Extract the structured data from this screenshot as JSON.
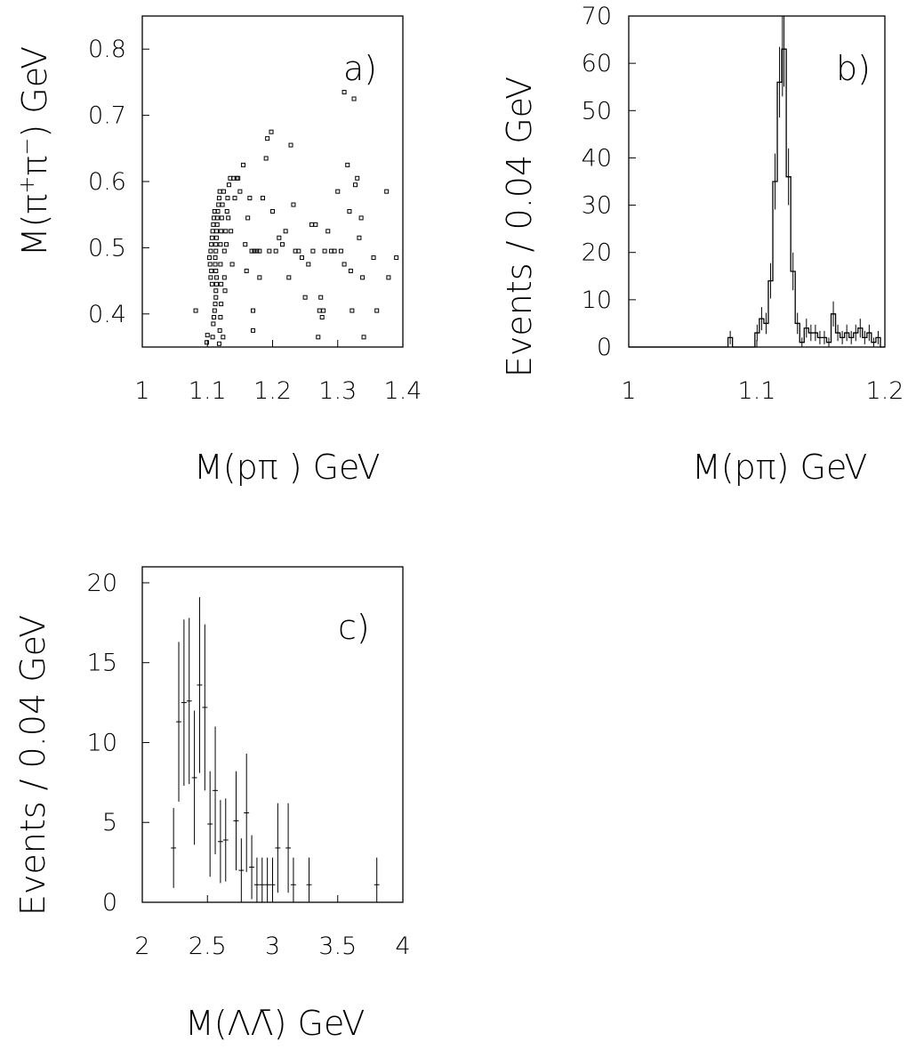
{
  "chart_data": [
    {
      "id": "a",
      "type": "scatter",
      "panel_label": "a)",
      "xlabel": "M(pπ ) GeV",
      "ylabel": "M(π+π−) GeV",
      "xlim": [
        1.0,
        1.4
      ],
      "ylim": [
        0.35,
        0.85
      ],
      "xticks": [
        1,
        1.1,
        1.2,
        1.3,
        1.4
      ],
      "xtick_labels": [
        "1",
        "1.1",
        "1.2",
        "1.3",
        "1.4"
      ],
      "yticks": [
        0.4,
        0.5,
        0.6,
        0.7,
        0.8
      ],
      "ytick_labels": [
        "0.4",
        "0.5",
        "0.6",
        "0.7",
        "0.8"
      ],
      "points": [
        [
          1.082,
          0.405
        ],
        [
          1.099,
          0.357
        ],
        [
          1.1,
          0.368
        ],
        [
          1.108,
          0.365
        ],
        [
          1.109,
          0.385
        ],
        [
          1.11,
          0.395
        ],
        [
          1.111,
          0.405
        ],
        [
          1.112,
          0.415
        ],
        [
          1.113,
          0.425
        ],
        [
          1.113,
          0.435
        ],
        [
          1.114,
          0.445
        ],
        [
          1.114,
          0.455
        ],
        [
          1.113,
          0.465
        ],
        [
          1.112,
          0.475
        ],
        [
          1.112,
          0.485
        ],
        [
          1.113,
          0.495
        ],
        [
          1.113,
          0.505
        ],
        [
          1.114,
          0.515
        ],
        [
          1.114,
          0.525
        ],
        [
          1.115,
          0.535
        ],
        [
          1.115,
          0.545
        ],
        [
          1.116,
          0.555
        ],
        [
          1.117,
          0.565
        ],
        [
          1.118,
          0.575
        ],
        [
          1.119,
          0.585
        ],
        [
          1.105,
          0.455
        ],
        [
          1.106,
          0.465
        ],
        [
          1.104,
          0.475
        ],
        [
          1.105,
          0.495
        ],
        [
          1.106,
          0.505
        ],
        [
          1.107,
          0.515
        ],
        [
          1.108,
          0.525
        ],
        [
          1.109,
          0.535
        ],
        [
          1.11,
          0.545
        ],
        [
          1.111,
          0.555
        ],
        [
          1.103,
          0.485
        ],
        [
          1.107,
          0.445
        ],
        [
          1.118,
          0.355
        ],
        [
          1.119,
          0.375
        ],
        [
          1.12,
          0.395
        ],
        [
          1.121,
          0.415
        ],
        [
          1.121,
          0.445
        ],
        [
          1.12,
          0.475
        ],
        [
          1.12,
          0.505
        ],
        [
          1.121,
          0.525
        ],
        [
          1.122,
          0.545
        ],
        [
          1.123,
          0.565
        ],
        [
          1.125,
          0.585
        ],
        [
          1.127,
          0.435
        ],
        [
          1.126,
          0.495
        ],
        [
          1.128,
          0.525
        ],
        [
          1.13,
          0.555
        ],
        [
          1.131,
          0.575
        ],
        [
          1.133,
          0.595
        ],
        [
          1.135,
          0.605
        ],
        [
          1.124,
          0.365
        ],
        [
          1.126,
          0.455
        ],
        [
          1.129,
          0.505
        ],
        [
          1.132,
          0.545
        ],
        [
          1.136,
          0.525
        ],
        [
          1.138,
          0.475
        ],
        [
          1.14,
          0.605
        ],
        [
          1.142,
          0.575
        ],
        [
          1.145,
          0.605
        ],
        [
          1.147,
          0.605
        ],
        [
          1.15,
          0.585
        ],
        [
          1.155,
          0.625
        ],
        [
          1.158,
          0.505
        ],
        [
          1.16,
          0.465
        ],
        [
          1.162,
          0.545
        ],
        [
          1.165,
          0.575
        ],
        [
          1.168,
          0.495
        ],
        [
          1.17,
          0.405
        ],
        [
          1.172,
          0.495
        ],
        [
          1.176,
          0.495
        ],
        [
          1.18,
          0.495
        ],
        [
          1.185,
          0.575
        ],
        [
          1.19,
          0.635
        ],
        [
          1.192,
          0.665
        ],
        [
          1.195,
          0.495
        ],
        [
          1.198,
          0.675
        ],
        [
          1.2,
          0.555
        ],
        [
          1.205,
          0.495
        ],
        [
          1.21,
          0.515
        ],
        [
          1.215,
          0.505
        ],
        [
          1.22,
          0.525
        ],
        [
          1.225,
          0.455
        ],
        [
          1.228,
          0.655
        ],
        [
          1.232,
          0.565
        ],
        [
          1.235,
          0.495
        ],
        [
          1.24,
          0.495
        ],
        [
          1.245,
          0.485
        ],
        [
          1.25,
          0.425
        ],
        [
          1.255,
          0.475
        ],
        [
          1.26,
          0.535
        ],
        [
          1.262,
          0.495
        ],
        [
          1.266,
          0.535
        ],
        [
          1.27,
          0.365
        ],
        [
          1.272,
          0.405
        ],
        [
          1.274,
          0.425
        ],
        [
          1.276,
          0.395
        ],
        [
          1.278,
          0.405
        ],
        [
          1.28,
          0.495
        ],
        [
          1.285,
          0.525
        ],
        [
          1.29,
          0.495
        ],
        [
          1.295,
          0.495
        ],
        [
          1.3,
          0.585
        ],
        [
          1.305,
          0.495
        ],
        [
          1.31,
          0.475
        ],
        [
          1.315,
          0.625
        ],
        [
          1.318,
          0.555
        ],
        [
          1.32,
          0.465
        ],
        [
          1.322,
          0.405
        ],
        [
          1.325,
          0.725
        ],
        [
          1.327,
          0.595
        ],
        [
          1.33,
          0.605
        ],
        [
          1.333,
          0.515
        ],
        [
          1.336,
          0.545
        ],
        [
          1.338,
          0.455
        ],
        [
          1.34,
          0.365
        ],
        [
          1.355,
          0.485
        ],
        [
          1.36,
          0.405
        ],
        [
          1.375,
          0.585
        ],
        [
          1.378,
          0.455
        ],
        [
          1.39,
          0.485
        ],
        [
          1.17,
          0.375
        ],
        [
          1.18,
          0.455
        ],
        [
          1.31,
          0.735
        ]
      ]
    },
    {
      "id": "b",
      "type": "histogram",
      "panel_label": "b)",
      "xlabel": "M(pπ) GeV",
      "ylabel": "Events / 0.04 GeV",
      "xlim": [
        1.0,
        1.2
      ],
      "ylim": [
        0,
        70
      ],
      "xticks": [
        1,
        1.1,
        1.2
      ],
      "xtick_labels": [
        "1",
        "1.1",
        "1.2"
      ],
      "yticks": [
        0,
        10,
        20,
        30,
        40,
        50,
        60,
        70
      ],
      "ytick_labels": [
        "0",
        "10",
        "20",
        "30",
        "40",
        "50",
        "60",
        "70"
      ],
      "bin_width": 0.0035,
      "bin_start": 1.0775,
      "counts": [
        2,
        0,
        0,
        0,
        0,
        0,
        3,
        6,
        5,
        14,
        35,
        56,
        63,
        36,
        16,
        5,
        1,
        4,
        3,
        3,
        2,
        2,
        1,
        7,
        3,
        2,
        3,
        2,
        3,
        4,
        2,
        3,
        1,
        2
      ],
      "peak_line_x": 1.12
    },
    {
      "id": "c",
      "type": "errorbar",
      "panel_label": "c)",
      "xlabel": "M(ΛΛ̄) GeV",
      "ylabel": "Events / 0.04 GeV",
      "xlim": [
        2.0,
        4.0
      ],
      "ylim": [
        0,
        21
      ],
      "xticks": [
        2,
        2.5,
        3,
        3.5,
        4
      ],
      "xtick_labels": [
        "2",
        "2.5",
        "3",
        "3.5",
        "4"
      ],
      "yticks": [
        0,
        5,
        10,
        15,
        20
      ],
      "ytick_labels": [
        "0",
        "5",
        "10",
        "15",
        "20"
      ],
      "x_halfwidth": 0.02,
      "points": [
        [
          2.24,
          3.4,
          2.5
        ],
        [
          2.28,
          11.3,
          5.0
        ],
        [
          2.32,
          12.5,
          5.2
        ],
        [
          2.36,
          12.6,
          5.2
        ],
        [
          2.4,
          7.8,
          4.2
        ],
        [
          2.44,
          13.6,
          5.5
        ],
        [
          2.48,
          12.2,
          5.2
        ],
        [
          2.52,
          4.9,
          3.3
        ],
        [
          2.56,
          7.0,
          4.0
        ],
        [
          2.6,
          3.8,
          2.6
        ],
        [
          2.64,
          3.9,
          2.6
        ],
        [
          2.72,
          5.1,
          3.1
        ],
        [
          2.76,
          2.0,
          2.0
        ],
        [
          2.8,
          5.6,
          3.7
        ],
        [
          2.84,
          2.2,
          2.0
        ],
        [
          2.88,
          1.1,
          1.7
        ],
        [
          2.92,
          1.1,
          1.7
        ],
        [
          2.96,
          1.1,
          1.7
        ],
        [
          3.0,
          1.1,
          1.7
        ],
        [
          3.04,
          3.4,
          2.8
        ],
        [
          3.12,
          3.4,
          2.8
        ],
        [
          3.16,
          1.1,
          1.7
        ],
        [
          3.28,
          1.1,
          1.7
        ],
        [
          3.8,
          1.1,
          1.7
        ]
      ]
    }
  ]
}
